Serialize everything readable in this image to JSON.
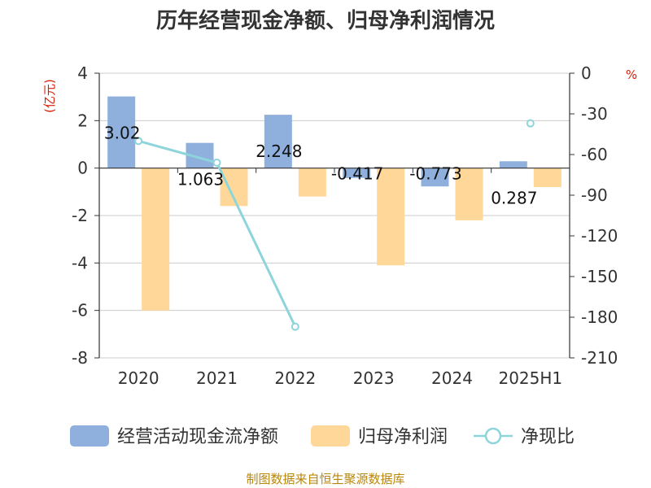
{
  "chart_data": {
    "type": "bar+line",
    "title": "历年经营现金净额、归母净利润情况",
    "categories": [
      "2020",
      "2021",
      "2022",
      "2023",
      "2024",
      "2025H1"
    ],
    "left_axis": {
      "unit": "(亿元)",
      "ylim": [
        -8,
        4
      ],
      "ticks": [
        4,
        2,
        0,
        -2,
        -4,
        -6,
        -8
      ]
    },
    "right_axis": {
      "unit": "%",
      "ylim": [
        -210,
        0
      ],
      "ticks": [
        0,
        -30,
        -60,
        -90,
        -120,
        -150,
        -180,
        -210
      ]
    },
    "series": [
      {
        "name": "经营活动现金流净额",
        "type": "bar",
        "axis": "left",
        "color": "#8fb0dd",
        "values": [
          3.02,
          1.063,
          2.248,
          -0.417,
          -0.773,
          0.287
        ],
        "labels": [
          "3.02",
          "1.063",
          "2.248",
          "-0.417",
          "-0.773",
          "0.287"
        ]
      },
      {
        "name": "归母净利润",
        "type": "bar",
        "axis": "left",
        "color": "#ffd899",
        "values": [
          -6.0,
          -1.6,
          -1.2,
          -4.1,
          -2.2,
          -0.8
        ]
      },
      {
        "name": "净现比",
        "type": "line",
        "axis": "right",
        "color": "#8ed4db",
        "values": [
          -50,
          -66,
          -187,
          null,
          null,
          -37
        ]
      }
    ],
    "grid": true,
    "legend": "bottom"
  },
  "source_text": "制图数据来自恒生聚源数据库"
}
